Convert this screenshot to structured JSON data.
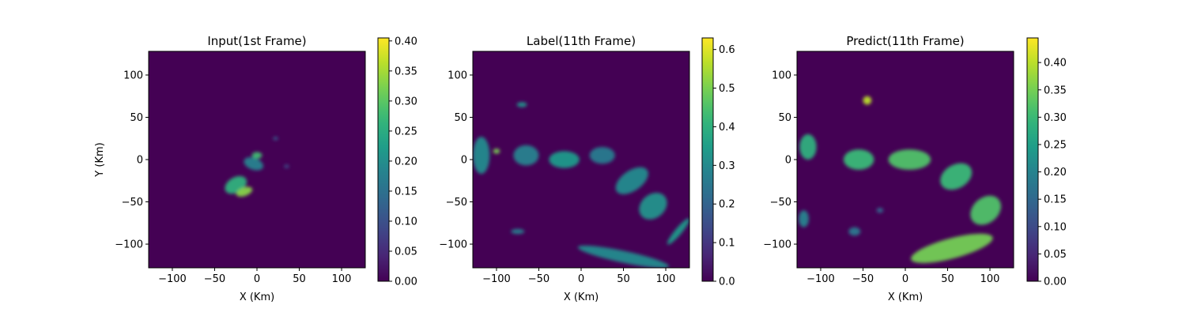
{
  "chart_data": [
    {
      "type": "heatmap",
      "title": "Input(1st Frame)",
      "xlabel": "X (Km)",
      "ylabel": "Y (Km)",
      "xlim": [
        -128,
        128
      ],
      "ylim": [
        -128,
        128
      ],
      "xticks": [
        -100,
        -50,
        0,
        50,
        100
      ],
      "yticks": [
        100,
        50,
        0,
        -50,
        -100
      ],
      "xtick_labels": [
        "−100",
        "−50",
        "0",
        "50",
        "100"
      ],
      "ytick_labels": [
        "100",
        "50",
        "0",
        "−50",
        "−100"
      ],
      "background_value": 0.0,
      "colorbar": {
        "min": 0.0,
        "max": 0.405,
        "ticks": [
          0.0,
          0.05,
          0.1,
          0.15,
          0.2,
          0.25,
          0.3,
          0.35,
          0.4
        ],
        "tick_labels": [
          "0.00",
          "0.05",
          "0.10",
          "0.15",
          "0.20",
          "0.25",
          "0.30",
          "0.35",
          "0.40"
        ]
      },
      "features": [
        {
          "x": -25,
          "y": -30,
          "rx": 14,
          "ry": 9,
          "rot": 30,
          "value": 0.26
        },
        {
          "x": -15,
          "y": -38,
          "rx": 10,
          "ry": 5,
          "rot": 20,
          "value": 0.33
        },
        {
          "x": -4,
          "y": -5,
          "rx": 12,
          "ry": 7,
          "rot": -20,
          "value": 0.18
        },
        {
          "x": 0,
          "y": 5,
          "rx": 6,
          "ry": 4,
          "rot": 0,
          "value": 0.28
        },
        {
          "x": 22,
          "y": 25,
          "rx": 3,
          "ry": 2,
          "rot": 0,
          "value": 0.12
        },
        {
          "x": 35,
          "y": -8,
          "rx": 3,
          "ry": 2,
          "rot": 0,
          "value": 0.1
        }
      ]
    },
    {
      "type": "heatmap",
      "title": "Label(11th Frame)",
      "xlabel": "X (Km)",
      "ylabel": "",
      "xlim": [
        -128,
        128
      ],
      "ylim": [
        -128,
        128
      ],
      "xticks": [
        -100,
        -50,
        0,
        50,
        100
      ],
      "yticks": [
        100,
        50,
        0,
        -50,
        -100
      ],
      "xtick_labels": [
        "−100",
        "−50",
        "0",
        "50",
        "100"
      ],
      "ytick_labels": [
        "100",
        "50",
        "0",
        "−50",
        "−100"
      ],
      "background_value": 0.0,
      "colorbar": {
        "min": 0.0,
        "max": 0.63,
        "ticks": [
          0.0,
          0.1,
          0.2,
          0.3,
          0.4,
          0.5,
          0.6
        ],
        "tick_labels": [
          "0.0",
          "0.1",
          "0.2",
          "0.3",
          "0.4",
          "0.5",
          "0.6"
        ]
      },
      "features": [
        {
          "x": -118,
          "y": 5,
          "rx": 10,
          "ry": 22,
          "rot": 0,
          "value": 0.3
        },
        {
          "x": -65,
          "y": 5,
          "rx": 15,
          "ry": 12,
          "rot": 0,
          "value": 0.28
        },
        {
          "x": -20,
          "y": 0,
          "rx": 18,
          "ry": 10,
          "rot": 0,
          "value": 0.34
        },
        {
          "x": 25,
          "y": 5,
          "rx": 15,
          "ry": 10,
          "rot": 0,
          "value": 0.26
        },
        {
          "x": 60,
          "y": -25,
          "rx": 22,
          "ry": 12,
          "rot": 35,
          "value": 0.3
        },
        {
          "x": 85,
          "y": -55,
          "rx": 18,
          "ry": 14,
          "rot": 40,
          "value": 0.32
        },
        {
          "x": 50,
          "y": -115,
          "rx": 55,
          "ry": 7,
          "rot": -12,
          "value": 0.3
        },
        {
          "x": 115,
          "y": -85,
          "rx": 20,
          "ry": 4,
          "rot": 50,
          "value": 0.34
        },
        {
          "x": -70,
          "y": 65,
          "rx": 6,
          "ry": 3,
          "rot": 0,
          "value": 0.32
        },
        {
          "x": -75,
          "y": -85,
          "rx": 8,
          "ry": 3,
          "rot": 0,
          "value": 0.27
        },
        {
          "x": -100,
          "y": 10,
          "rx": 4,
          "ry": 3,
          "rot": 0,
          "value": 0.5
        }
      ]
    },
    {
      "type": "heatmap",
      "title": "Predict(11th Frame)",
      "xlabel": "X (Km)",
      "ylabel": "",
      "xlim": [
        -128,
        128
      ],
      "ylim": [
        -128,
        128
      ],
      "xticks": [
        -100,
        -50,
        0,
        50,
        100
      ],
      "yticks": [
        100,
        50,
        0,
        -50,
        -100
      ],
      "xtick_labels": [
        "−100",
        "−50",
        "0",
        "50",
        "100"
      ],
      "ytick_labels": [
        "100",
        "50",
        "0",
        "−50",
        "−100"
      ],
      "background_value": 0.0,
      "colorbar": {
        "min": 0.0,
        "max": 0.445,
        "ticks": [
          0.0,
          0.05,
          0.1,
          0.15,
          0.2,
          0.25,
          0.3,
          0.35,
          0.4
        ],
        "tick_labels": [
          "0.00",
          "0.05",
          "0.10",
          "0.15",
          "0.20",
          "0.25",
          "0.30",
          "0.35",
          "0.40"
        ]
      },
      "features": [
        {
          "x": -115,
          "y": 15,
          "rx": 10,
          "ry": 15,
          "rot": 0,
          "value": 0.28
        },
        {
          "x": -55,
          "y": 0,
          "rx": 18,
          "ry": 12,
          "rot": 0,
          "value": 0.3
        },
        {
          "x": 5,
          "y": 0,
          "rx": 25,
          "ry": 12,
          "rot": 0,
          "value": 0.32
        },
        {
          "x": 60,
          "y": -20,
          "rx": 20,
          "ry": 14,
          "rot": 30,
          "value": 0.3
        },
        {
          "x": 95,
          "y": -60,
          "rx": 20,
          "ry": 15,
          "rot": 40,
          "value": 0.32
        },
        {
          "x": 55,
          "y": -105,
          "rx": 50,
          "ry": 12,
          "rot": 15,
          "value": 0.35
        },
        {
          "x": -120,
          "y": -70,
          "rx": 6,
          "ry": 10,
          "rot": 0,
          "value": 0.2
        },
        {
          "x": -60,
          "y": -85,
          "rx": 7,
          "ry": 5,
          "rot": 0,
          "value": 0.18
        },
        {
          "x": -45,
          "y": 70,
          "rx": 5,
          "ry": 5,
          "rot": 0,
          "value": 0.4
        },
        {
          "x": -30,
          "y": -60,
          "rx": 4,
          "ry": 3,
          "rot": 0,
          "value": 0.15
        }
      ]
    }
  ]
}
